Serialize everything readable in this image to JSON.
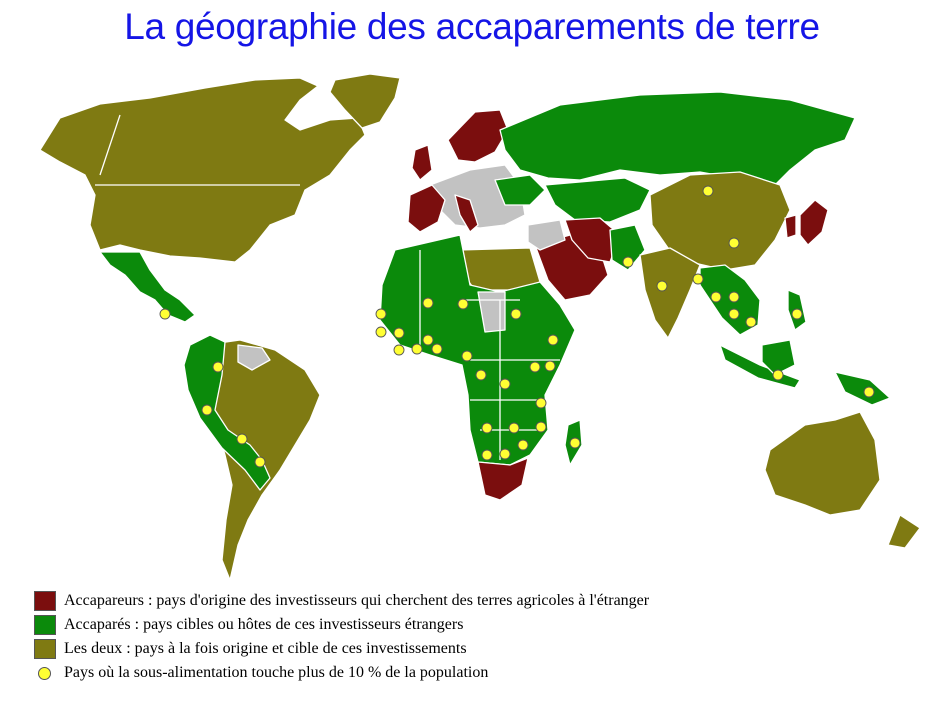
{
  "title": "La géographie des accaparements de terre",
  "colors": {
    "grabber": "#7b0e0e",
    "target": "#0b8a0b",
    "both": "#7f7a12",
    "neutral": "#c2c2c2",
    "hunger_dot": "#ffff33",
    "title": "#1515e6"
  },
  "legend": [
    {
      "key": "grabber",
      "label": "Accapareurs : pays d'origine des investisseurs qui cherchent des terres agricoles à l'étranger"
    },
    {
      "key": "target",
      "label": "Accaparés : pays cibles ou hôtes de ces investisseurs étrangers"
    },
    {
      "key": "both",
      "label": "Les deux : pays à la fois origine et cible de ces investissements"
    },
    {
      "key": "hunger_dot",
      "label": "Pays où la sous-alimentation touche plus de 10 % de la population"
    }
  ]
}
